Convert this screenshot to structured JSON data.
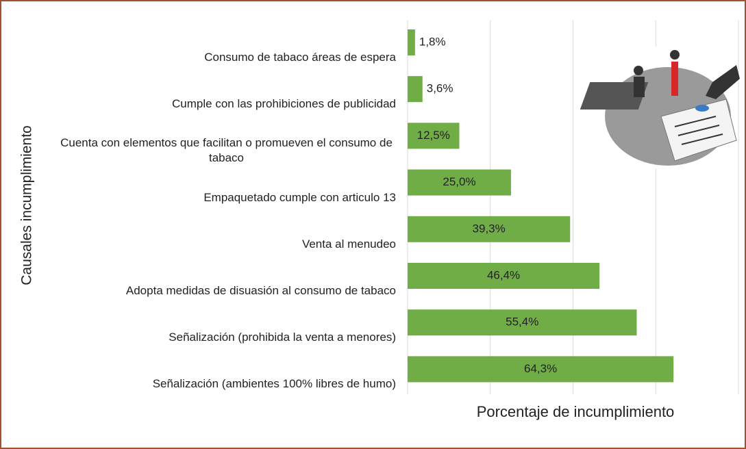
{
  "chart_data": {
    "type": "bar",
    "orientation": "horizontal",
    "x_label": "Porcentaje de incumplimiento",
    "y_label": "Causales incumplimiento",
    "categories": [
      "Consumo de tabaco áreas de espera",
      "Cumple con las prohibiciones de publicidad",
      "Cuenta con elementos que facilitan o promueven el consumo de tabaco",
      "Empaquetado cumple con articulo 13",
      "Venta al menudeo",
      "Adopta medidas de disuasión al consumo de tabaco",
      "Señalización (prohibida la venta a menores)",
      "Señalización (ambientes 100% libres de humo)"
    ],
    "values": [
      1.8,
      3.6,
      12.5,
      25.0,
      39.3,
      46.4,
      55.4,
      64.3
    ],
    "value_labels": [
      "1,8%",
      "3,6%",
      "12,5%",
      "25,0%",
      "39,3%",
      "46,4%",
      "55,4%",
      "64,3%"
    ],
    "color": "#70ad47",
    "xlim": [
      0,
      80
    ],
    "xticks": [
      0,
      20,
      40,
      60,
      80
    ],
    "grid": true
  }
}
